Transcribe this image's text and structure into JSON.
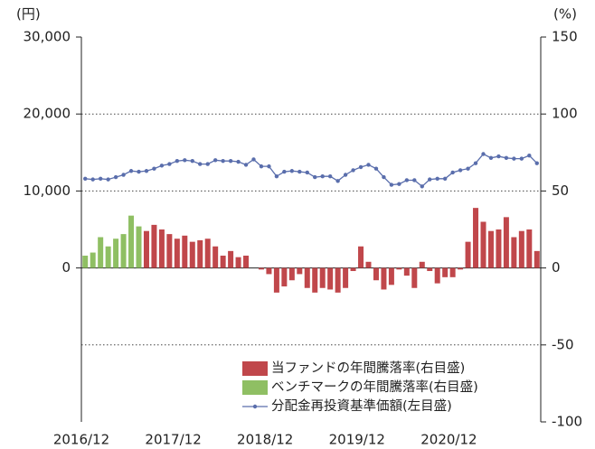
{
  "chart_data": {
    "type": "bar",
    "y_unit_label": "(円)",
    "y2_unit_label": "(%)",
    "categories": [
      "2016/12",
      null,
      null,
      null,
      null,
      null,
      null,
      null,
      null,
      null,
      null,
      null,
      "2017/12",
      null,
      null,
      null,
      null,
      null,
      null,
      null,
      null,
      null,
      null,
      null,
      "2018/12",
      null,
      null,
      null,
      null,
      null,
      null,
      null,
      null,
      null,
      null,
      null,
      "2019/12",
      null,
      null,
      null,
      null,
      null,
      null,
      null,
      null,
      null,
      null,
      null,
      "2020/12",
      null,
      null,
      null,
      null,
      null,
      null,
      null,
      null,
      null,
      null,
      null
    ],
    "ylim": [
      -20000,
      30000
    ],
    "yticks": [
      {
        "value": 30000,
        "label": "30,000"
      },
      {
        "value": 20000,
        "label": "20,000"
      },
      {
        "value": 10000,
        "label": "10,000"
      },
      0
    ],
    "y2lim": [
      -100,
      150
    ],
    "y2ticks": [
      150,
      100,
      50,
      0,
      -50,
      -100
    ],
    "grid": true,
    "legend": "lower right",
    "series": [
      {
        "name": "当ファンドの年間騰落率(右目盛)",
        "type": "bar",
        "axis": "y2",
        "color": "#c0474b",
        "values": [
          null,
          null,
          null,
          null,
          null,
          null,
          null,
          null,
          24,
          28,
          25,
          22,
          19,
          21,
          17,
          18,
          19,
          14,
          8,
          11,
          7,
          8,
          0,
          -1,
          -4,
          -16,
          -12,
          -8,
          -4,
          -13,
          -16,
          -13,
          -14,
          -16,
          -13,
          -2,
          14,
          4,
          -8,
          -14,
          -11,
          -1,
          -5,
          -13,
          4,
          -2,
          -10,
          -6,
          -6,
          -1,
          17,
          39,
          30,
          24,
          25,
          33,
          20,
          24,
          25,
          11
        ]
      },
      {
        "name": "ベンチマークの年間騰落率(右目盛)",
        "type": "bar",
        "axis": "y2",
        "color": "#8fbf63",
        "values": [
          8,
          10,
          20,
          14,
          19,
          22,
          34,
          27,
          null,
          null,
          null,
          null,
          null,
          null,
          null,
          null,
          null,
          null,
          null,
          null,
          null,
          null,
          null,
          null,
          null,
          null,
          null,
          null,
          null,
          null,
          null,
          null,
          null,
          null,
          null,
          null,
          null,
          null,
          null,
          null,
          null,
          null,
          null,
          null,
          null,
          null,
          null,
          null,
          null,
          null,
          null,
          null,
          null,
          null,
          null,
          null,
          null,
          null,
          null,
          null
        ]
      },
      {
        "name": "分配金再投資基準価額(左目盛)",
        "type": "line",
        "axis": "y",
        "color": "#5a6eac",
        "values": [
          11600,
          11500,
          11600,
          11500,
          11800,
          12100,
          12600,
          12500,
          12600,
          12900,
          13300,
          13500,
          13900,
          14000,
          13900,
          13500,
          13500,
          14000,
          13900,
          13900,
          13800,
          13400,
          14100,
          13200,
          13200,
          11900,
          12500,
          12600,
          12500,
          12400,
          11800,
          11900,
          11900,
          11300,
          12100,
          12700,
          13100,
          13400,
          12900,
          11800,
          10800,
          10900,
          11400,
          11400,
          10600,
          11500,
          11600,
          11600,
          12400,
          12700,
          12900,
          13600,
          14800,
          14300,
          14500,
          14300,
          14200,
          14200,
          14600,
          13600
        ]
      }
    ]
  }
}
